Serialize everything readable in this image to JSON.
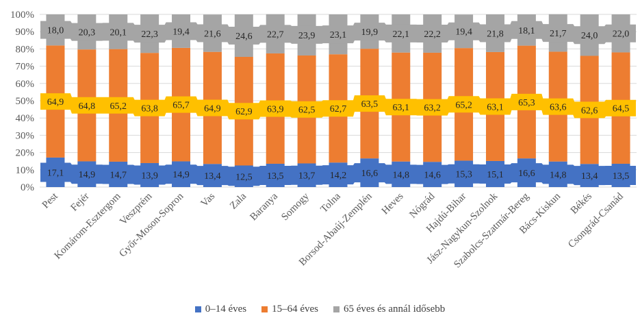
{
  "chart_data": {
    "type": "bar",
    "stacked": true,
    "percent_stacked": true,
    "categories": [
      "Pest",
      "Fejér",
      "Komárom-Esztergom",
      "Veszprém",
      "Győr-Moson-Sopron",
      "Vas",
      "Zala",
      "Baranya",
      "Somogy",
      "Tolna",
      "Borsod-Abaúj-Zemplén",
      "Heves",
      "Nógrád",
      "Hajdú-Bihar",
      "Jász-Nagykun-Szolnok",
      "Szabolcs-Szatmár-Bereg",
      "Bács-Kiskun",
      "Békés",
      "Csongrád-Csanád"
    ],
    "series": [
      {
        "name": "0–14 éves",
        "color": "#4472c4",
        "values": [
          17.1,
          14.9,
          14.7,
          13.9,
          14.9,
          13.4,
          12.5,
          13.5,
          13.7,
          14.2,
          16.6,
          14.8,
          14.6,
          15.3,
          15.1,
          16.6,
          14.8,
          13.4,
          13.5
        ],
        "labels": [
          "17,1",
          "14,9",
          "14,7",
          "13,9",
          "14,9",
          "13,4",
          "12,5",
          "13,5",
          "13,7",
          "14,2",
          "16,6",
          "14,8",
          "14,6",
          "15,3",
          "15,1",
          "16,6",
          "14,8",
          "13,4",
          "13,5"
        ]
      },
      {
        "name": "15–64 éves",
        "color": "#ed7d31",
        "values": [
          64.9,
          64.8,
          65.2,
          63.8,
          65.7,
          64.9,
          62.9,
          63.9,
          62.5,
          62.7,
          63.5,
          63.1,
          63.2,
          65.2,
          63.1,
          65.3,
          63.6,
          62.6,
          64.5
        ],
        "labels": [
          "64,9",
          "64,8",
          "65,2",
          "63,8",
          "65,7",
          "64,9",
          "62,9",
          "63,9",
          "62,5",
          "62,7",
          "63,5",
          "63,1",
          "63,2",
          "65,2",
          "63,1",
          "65,3",
          "63,6",
          "62,6",
          "64,5"
        ]
      },
      {
        "name": "65 éves és annál idősebb",
        "color": "#a5a5a5",
        "values": [
          18.0,
          20.3,
          20.1,
          22.3,
          19.4,
          21.6,
          24.6,
          22.7,
          23.9,
          23.1,
          19.9,
          22.1,
          22.2,
          19.4,
          21.8,
          18.1,
          21.7,
          24.0,
          22.0
        ],
        "labels": [
          "18,0",
          "20,3",
          "20,1",
          "22,3",
          "19,4",
          "21,6",
          "24,6",
          "22,7",
          "23,9",
          "23,1",
          "19,9",
          "22,1",
          "22,2",
          "19,4",
          "21,8",
          "18,1",
          "21,7",
          "24,0",
          "22,0"
        ]
      }
    ],
    "yticks": [
      "0%",
      "10%",
      "20%",
      "30%",
      "40%",
      "50%",
      "60%",
      "70%",
      "80%",
      "90%",
      "100%"
    ],
    "ylim": [
      0,
      100
    ],
    "grid": true,
    "legend_position": "bottom",
    "label_band_colors": {
      "bottom": "#4472c4",
      "middle": "#ffc000",
      "top": "#a5a5a5"
    }
  }
}
